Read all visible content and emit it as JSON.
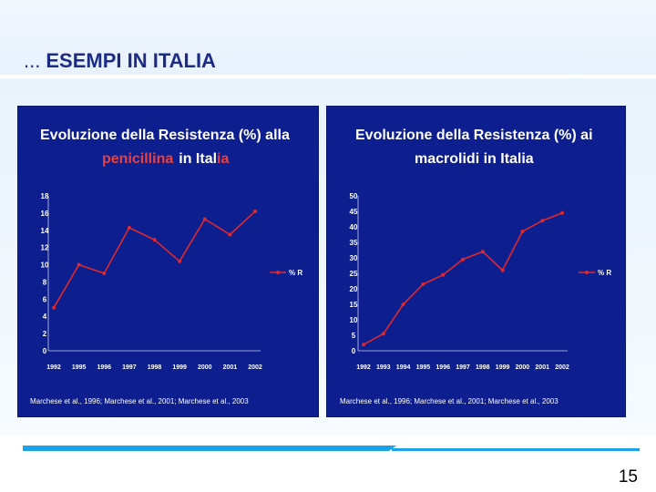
{
  "slide": {
    "title_prefix": "...",
    "title": "ESEMPI IN ITALIA",
    "page_number": "15"
  },
  "colors": {
    "panel_bg": "#0d1f8f",
    "title_white": "#ffffff",
    "title_accent": "#e84040",
    "series": "#e0282a"
  },
  "chart_data": [
    {
      "type": "line",
      "title_line1": "Evoluzione della Resistenza (%) alla",
      "title_line2_red": "penicillina",
      "title_line2_white": "in Ital",
      "title_line2_tail_red": "ia",
      "categories": [
        "1992",
        "1995",
        "1996",
        "1997",
        "1998",
        "1999",
        "2000",
        "2001",
        "2002"
      ],
      "series": [
        {
          "name": "% R",
          "values": [
            5,
            10,
            9,
            14.3,
            12.9,
            10.4,
            15.3,
            13.5,
            16.2
          ]
        }
      ],
      "yticks": [
        "0",
        "2",
        "4",
        "6",
        "8",
        "10",
        "12",
        "14",
        "16",
        "18"
      ],
      "ylim": [
        0,
        18
      ],
      "grid": false,
      "legend_position": "right",
      "source": "Marchese et al., 1996; Marchese et al., 2001; Marchese et al., 2003"
    },
    {
      "type": "line",
      "title_line1": "Evoluzione della Resistenza (%) ai",
      "title_line2": "macrolidi in Italia",
      "categories": [
        "1992",
        "1993",
        "1994",
        "1995",
        "1996",
        "1997",
        "1998",
        "1999",
        "2000",
        "2001",
        "2002"
      ],
      "series": [
        {
          "name": "% R",
          "values": [
            2,
            5.5,
            15,
            21.5,
            24.5,
            29.5,
            32,
            26,
            38.5,
            42,
            44.5
          ]
        }
      ],
      "yticks": [
        "0",
        "5",
        "10",
        "15",
        "20",
        "25",
        "30",
        "35",
        "40",
        "45",
        "50"
      ],
      "ylim": [
        0,
        50
      ],
      "grid": false,
      "legend_position": "right",
      "source": "Marchese et al., 1996; Marchese et al., 2001; Marchese et al., 2003"
    }
  ]
}
